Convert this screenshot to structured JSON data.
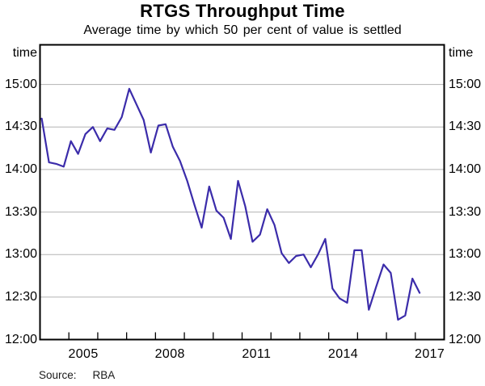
{
  "chart_data": {
    "type": "line",
    "title": "RTGS Throughput Time",
    "subtitle": "Average time by which 50 per cent of value is settled",
    "xlabel": "",
    "ylabel": "time",
    "y_unit_label_both_sides": "time",
    "xlim": [
      2004.0,
      2018.0
    ],
    "ylim": [
      "12:00",
      "15:28"
    ],
    "xticks": [
      2005,
      2006,
      2007,
      2008,
      2009,
      2010,
      2011,
      2012,
      2013,
      2014,
      2015,
      2016,
      2017
    ],
    "xtick_labels": [
      "2005",
      "2008",
      "2011",
      "2014",
      "2017"
    ],
    "xtick_label_positions": [
      2005.5,
      2008.5,
      2011.5,
      2014.5,
      2017.5
    ],
    "yticks": [
      "12:00",
      "12:30",
      "13:00",
      "13:30",
      "14:00",
      "14:30",
      "15:00"
    ],
    "grid": "horizontal",
    "source_label": "Source:",
    "source": "RBA",
    "colors": {
      "line": "#3b2caa",
      "grid": "#b3b3b3",
      "frame": "#000000"
    },
    "series": [
      {
        "name": "Average time by which 50 per cent of RTGS value is settled",
        "frequency": "quarterly",
        "x": [
          2004.06,
          2004.31,
          2004.56,
          2004.82,
          2005.07,
          2005.32,
          2005.57,
          2005.83,
          2006.08,
          2006.33,
          2006.58,
          2006.83,
          2007.09,
          2007.34,
          2007.59,
          2007.84,
          2008.1,
          2008.35,
          2008.6,
          2008.85,
          2009.1,
          2009.35,
          2009.6,
          2009.86,
          2010.11,
          2010.36,
          2010.61,
          2010.86,
          2011.11,
          2011.36,
          2011.62,
          2011.87,
          2012.12,
          2012.37,
          2012.62,
          2012.87,
          2013.13,
          2013.38,
          2013.63,
          2013.88,
          2014.13,
          2014.38,
          2014.64,
          2014.89,
          2015.14,
          2015.39,
          2015.64,
          2015.9,
          2016.15,
          2016.4,
          2016.65,
          2016.9,
          2017.15
        ],
        "times": [
          "14:36",
          "14:05",
          "14:04",
          "14:02",
          "14:20",
          "14:11",
          "14:25",
          "14:30",
          "14:20",
          "14:29",
          "14:28",
          "14:37",
          "14:57",
          "14:46",
          "14:35",
          "14:12",
          "14:31",
          "14:32",
          "14:16",
          "14:06",
          "13:52",
          "13:35",
          "13:19",
          "13:48",
          "13:31",
          "13:26",
          "13:11",
          "13:52",
          "13:34",
          "13:09",
          "13:14",
          "13:32",
          "13:21",
          "13:01",
          "12:54",
          "12:59",
          "13:00",
          "12:51",
          "13:00",
          "13:11",
          "12:36",
          "12:29",
          "12:26",
          "13:03",
          "13:03",
          "12:21",
          "12:37",
          "12:53",
          "12:47",
          "12:14",
          "12:17",
          "12:43",
          "12:33"
        ]
      }
    ]
  }
}
